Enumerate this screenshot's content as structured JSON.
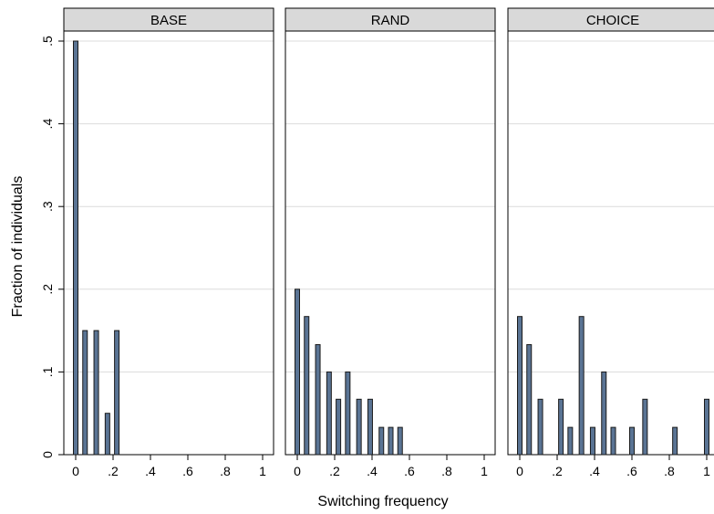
{
  "colors": {
    "bar_fill": "#5a7494",
    "bar_edge": "#1a1a1a",
    "strip": "#d9d9d9",
    "grid": "#dcdcdc"
  },
  "chart_data": {
    "type": "bar",
    "xlabel": "Switching frequency",
    "ylabel": "Fraction of individuals",
    "xlim": [
      0,
      1
    ],
    "ylim": [
      0,
      0.5
    ],
    "x_ticks": [
      0,
      0.2,
      0.4,
      0.6,
      0.8,
      1
    ],
    "x_tick_labels": [
      "0",
      ".2",
      ".4",
      ".6",
      ".8",
      "1"
    ],
    "y_ticks": [
      0,
      0.1,
      0.2,
      0.3,
      0.4,
      0.5
    ],
    "y_tick_labels": [
      "0",
      ".1",
      ".2",
      ".3",
      ".4",
      ".5"
    ],
    "grid": true,
    "panels": [
      {
        "title": "BASE",
        "bars": [
          {
            "x": 0.0,
            "y": 0.5
          },
          {
            "x": 0.05,
            "y": 0.15
          },
          {
            "x": 0.11,
            "y": 0.15
          },
          {
            "x": 0.17,
            "y": 0.05
          },
          {
            "x": 0.22,
            "y": 0.15
          }
        ]
      },
      {
        "title": "RAND",
        "bars": [
          {
            "x": 0.0,
            "y": 0.2
          },
          {
            "x": 0.05,
            "y": 0.167
          },
          {
            "x": 0.11,
            "y": 0.133
          },
          {
            "x": 0.17,
            "y": 0.1
          },
          {
            "x": 0.22,
            "y": 0.067
          },
          {
            "x": 0.27,
            "y": 0.1
          },
          {
            "x": 0.33,
            "y": 0.067
          },
          {
            "x": 0.39,
            "y": 0.067
          },
          {
            "x": 0.45,
            "y": 0.033
          },
          {
            "x": 0.5,
            "y": 0.033
          },
          {
            "x": 0.55,
            "y": 0.033
          }
        ]
      },
      {
        "title": "CHOICE",
        "bars": [
          {
            "x": 0.0,
            "y": 0.167
          },
          {
            "x": 0.05,
            "y": 0.133
          },
          {
            "x": 0.11,
            "y": 0.067
          },
          {
            "x": 0.22,
            "y": 0.067
          },
          {
            "x": 0.27,
            "y": 0.033
          },
          {
            "x": 0.33,
            "y": 0.167
          },
          {
            "x": 0.39,
            "y": 0.033
          },
          {
            "x": 0.45,
            "y": 0.1
          },
          {
            "x": 0.5,
            "y": 0.033
          },
          {
            "x": 0.6,
            "y": 0.033
          },
          {
            "x": 0.67,
            "y": 0.067
          },
          {
            "x": 0.83,
            "y": 0.033
          },
          {
            "x": 1.0,
            "y": 0.067
          }
        ]
      }
    ]
  }
}
